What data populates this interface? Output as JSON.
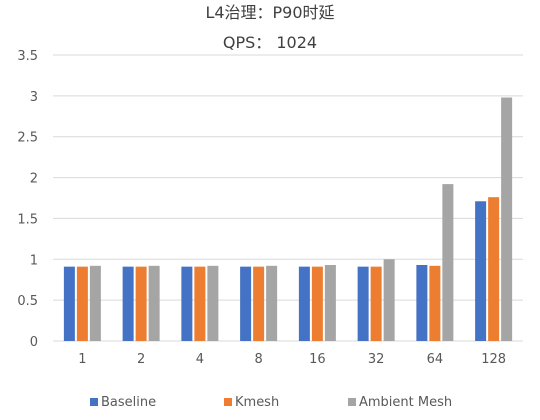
{
  "chart_data": {
    "type": "bar",
    "title": "L4治理：P90时延",
    "subtitle": "QPS： 1024",
    "categories": [
      "1",
      "2",
      "4",
      "8",
      "16",
      "32",
      "64",
      "128"
    ],
    "series": [
      {
        "name": "Baseline",
        "color": "#4472C4",
        "values": [
          0.91,
          0.91,
          0.91,
          0.91,
          0.91,
          0.91,
          0.93,
          1.71
        ]
      },
      {
        "name": "Kmesh",
        "color": "#ED7D31",
        "values": [
          0.91,
          0.91,
          0.91,
          0.91,
          0.91,
          0.91,
          0.92,
          1.76
        ]
      },
      {
        "name": "Ambient Mesh",
        "color": "#A5A5A5",
        "values": [
          0.92,
          0.92,
          0.92,
          0.92,
          0.93,
          1.0,
          1.92,
          2.98
        ]
      }
    ],
    "ylim": [
      0,
      3.5
    ],
    "yticks": [
      "0",
      "0.5",
      "1",
      "1.5",
      "2",
      "2.5",
      "3",
      "3.5"
    ],
    "ytick_values": [
      0,
      0.5,
      1,
      1.5,
      2,
      2.5,
      3,
      3.5
    ],
    "grid": true,
    "legend_position": "bottom",
    "xlabel": "",
    "ylabel": ""
  }
}
